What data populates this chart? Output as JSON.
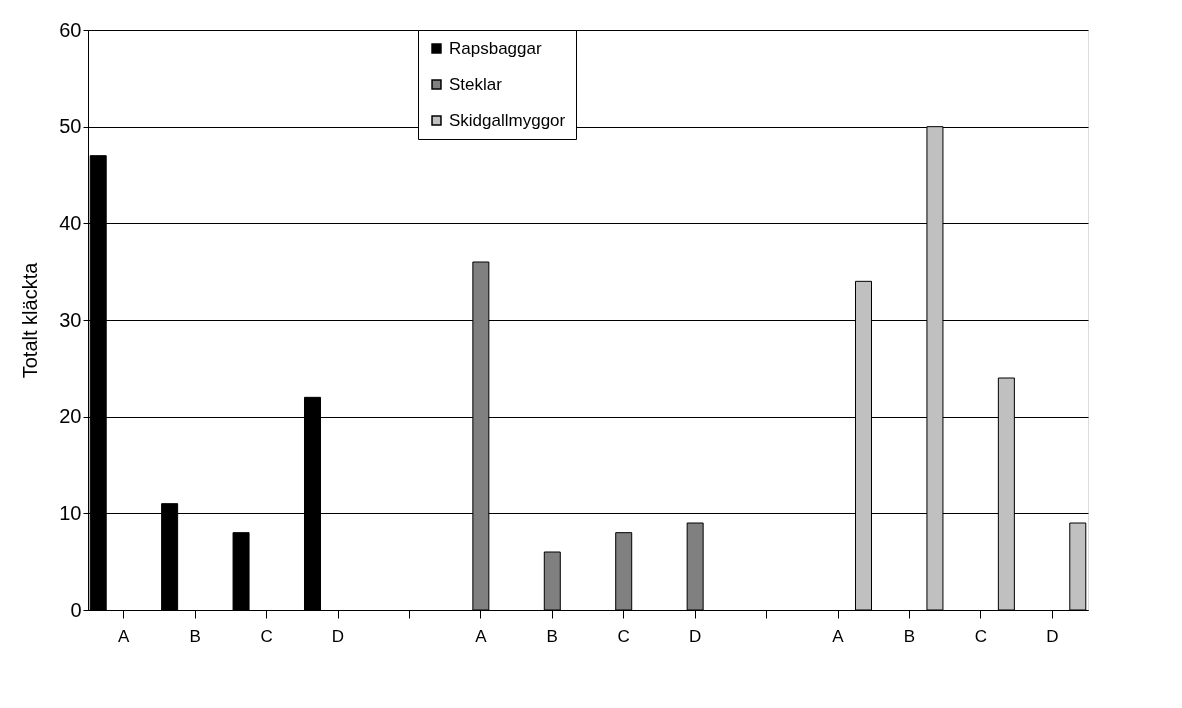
{
  "chart_data": {
    "type": "bar",
    "ylabel": "Totalt kläckta",
    "categories": [
      "A",
      "B",
      "C",
      "D",
      null,
      "A",
      "B",
      "C",
      "D",
      null,
      "A",
      "B",
      "C",
      "D"
    ],
    "series": [
      {
        "name": "Rapsbaggar",
        "color": "#000000",
        "values": [
          47,
          11,
          8,
          22,
          null,
          null,
          null,
          null,
          null,
          null,
          null,
          null,
          null,
          null
        ]
      },
      {
        "name": "Steklar",
        "color": "#808080",
        "values": [
          null,
          null,
          null,
          null,
          null,
          36,
          6,
          8,
          9,
          null,
          null,
          null,
          null,
          null
        ]
      },
      {
        "name": "Skidgallmyggor",
        "color": "#c0c0c0",
        "values": [
          null,
          null,
          null,
          null,
          null,
          null,
          null,
          null,
          null,
          null,
          34,
          50,
          24,
          9
        ]
      }
    ],
    "ylim": [
      0,
      60
    ],
    "yticks": [
      0,
      10,
      20,
      30,
      40,
      50,
      60
    ],
    "grid": "y",
    "legend": "top"
  }
}
